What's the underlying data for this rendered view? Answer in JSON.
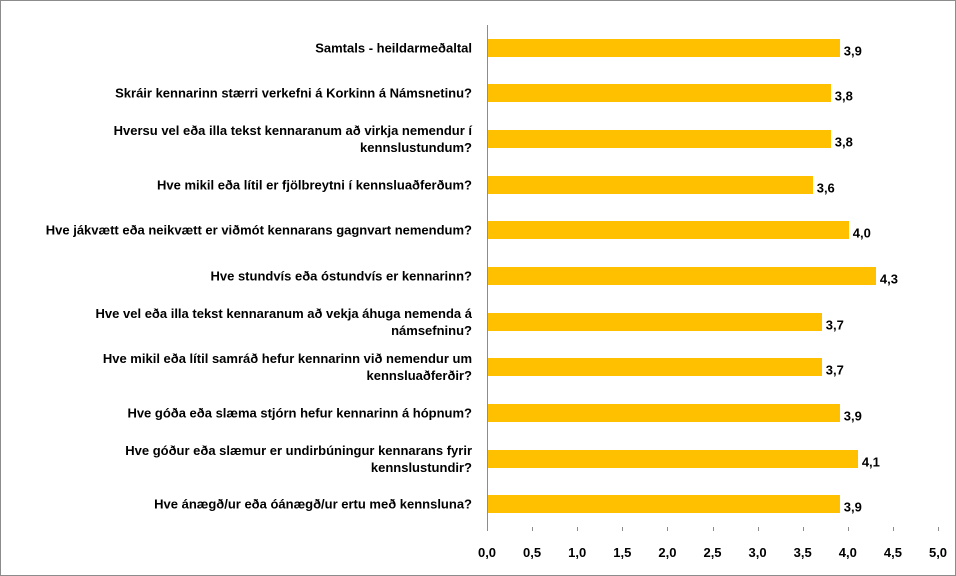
{
  "chart_data": {
    "type": "hbar",
    "categories": [
      "Samtals - heildarmeðaltal",
      "Skráir kennarinn stærri verkefni á Korkinn á Námsnetinu?",
      "Hversu vel eða illa tekst kennaranum að virkja nemendur í kennslustundum?",
      "Hve mikil eða lítil er fjölbreytni í kennsluaðferðum?",
      "Hve jákvætt eða neikvætt er viðmót kennarans gagnvart nemendum?",
      "Hve stundvís eða óstundvís er kennarinn?",
      "Hve vel eða illa tekst kennaranum að vekja áhuga nemenda á námsefninu?",
      "Hve mikil eða lítil samráð hefur kennarinn við nemendur um kennsluaðferðir?",
      "Hve góða eða slæma stjórn hefur kennarinn á hópnum?",
      "Hve góður eða slæmur er undirbúningur kennarans fyrir kennslustundir?",
      "Hve ánægð/ur eða óánægð/ur ertu með kennsluna?"
    ],
    "values": [
      3.9,
      3.8,
      3.8,
      3.6,
      4.0,
      4.3,
      3.7,
      3.7,
      3.9,
      4.1,
      3.9
    ],
    "value_labels": [
      "3,9",
      "3,8",
      "3,8",
      "3,6",
      "4,0",
      "4,3",
      "3,7",
      "3,7",
      "3,9",
      "4,1",
      "3,9"
    ],
    "color": "#ffc000",
    "xlim": [
      0,
      5
    ],
    "xticks": [
      {
        "value": 0,
        "label": "0,0"
      },
      {
        "value": 0.5,
        "label": "0,5"
      },
      {
        "value": 1,
        "label": "1,0"
      },
      {
        "value": 1.5,
        "label": "1,5"
      },
      {
        "value": 2,
        "label": "2,0"
      },
      {
        "value": 2.5,
        "label": "2,5"
      },
      {
        "value": 3,
        "label": "3,0"
      },
      {
        "value": 3.5,
        "label": "3,5"
      },
      {
        "value": 4,
        "label": "4,0"
      },
      {
        "value": 4.5,
        "label": "4,5"
      },
      {
        "value": 5,
        "label": "5,0"
      }
    ]
  }
}
